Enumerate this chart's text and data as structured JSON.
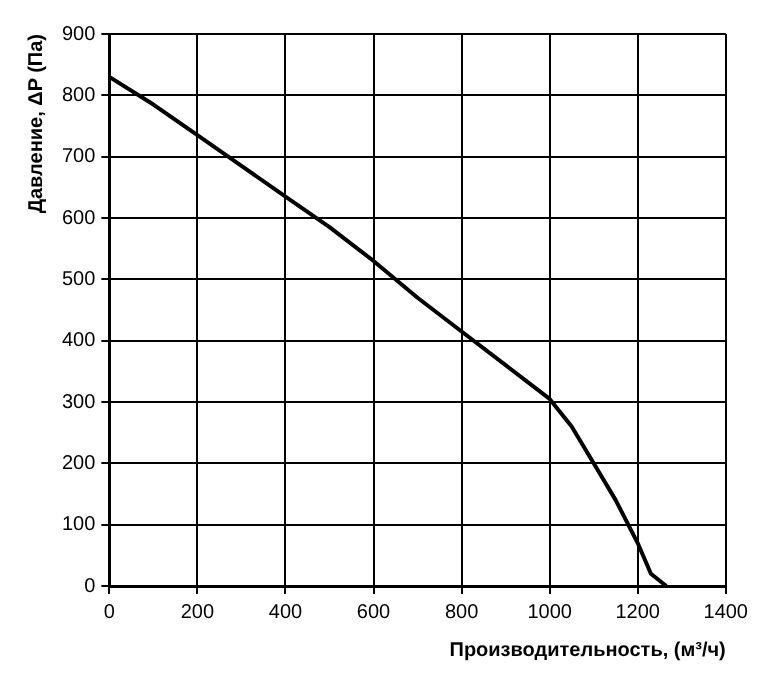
{
  "chart_data": {
    "type": "line",
    "xlabel": "Производительность, (м³/ч)",
    "ylabel": "Давление, ΔP (Па)",
    "series": [
      {
        "color": "#000000",
        "x": [
          0,
          100,
          200,
          300,
          400,
          500,
          600,
          700,
          800,
          900,
          1000,
          1050,
          1100,
          1150,
          1200,
          1230,
          1265
        ],
        "values": [
          830,
          785,
          735,
          685,
          635,
          585,
          530,
          470,
          415,
          360,
          305,
          260,
          200,
          140,
          70,
          20,
          0
        ]
      }
    ],
    "xlim": [
      0,
      1400
    ],
    "xticks": [
      0,
      200,
      400,
      600,
      800,
      1000,
      1200,
      1400
    ],
    "ylim": [
      0,
      900
    ],
    "yticks": [
      0,
      100,
      200,
      300,
      400,
      500,
      600,
      700,
      800,
      900
    ],
    "grid": true,
    "legend": false,
    "marker": "none",
    "line_style": "solid"
  }
}
